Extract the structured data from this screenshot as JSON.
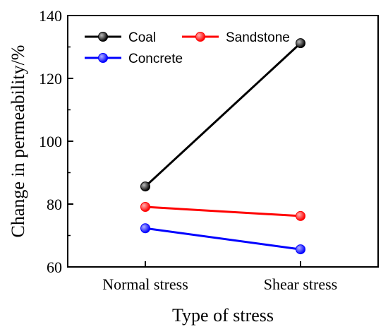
{
  "chart_data": {
    "type": "line",
    "categories": [
      "Normal stress",
      "Shear stress"
    ],
    "series": [
      {
        "name": "Coal",
        "values": [
          85.6,
          131.2
        ],
        "color": "#000000",
        "marker_highlight": "#bbbbbb"
      },
      {
        "name": "Sandstone",
        "values": [
          79.1,
          76.2
        ],
        "color": "#ff0000",
        "marker_highlight": "#ffb0b0"
      },
      {
        "name": "Concrete",
        "values": [
          72.3,
          65.6
        ],
        "color": "#0000ff",
        "marker_highlight": "#b0b0ff"
      }
    ],
    "xlabel": "Type of stress",
    "ylabel": "Change in permeability/%",
    "ylim": [
      60,
      140
    ],
    "yticks": [
      60,
      80,
      100,
      120,
      140
    ],
    "grid": false,
    "legend": "top-left"
  }
}
